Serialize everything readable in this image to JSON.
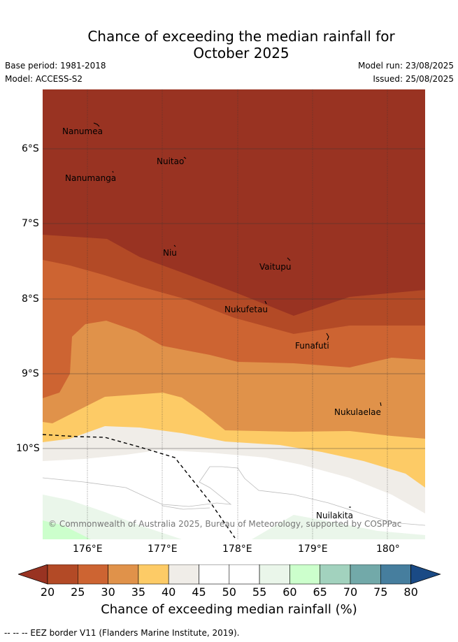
{
  "title_line1": "Chance of exceeding the median rainfall for",
  "title_line2": "October 2025",
  "meta": {
    "base_period": "Base period: 1981-2018",
    "model": "Model: ACCESS-S2",
    "model_run": "Model run: 23/08/2025",
    "issued": "Issued: 25/08/2025"
  },
  "map": {
    "lat_labels": [
      "6°S",
      "7°S",
      "8°S",
      "9°S",
      "10°S"
    ],
    "lon_labels": [
      "176°E",
      "177°E",
      "178°E",
      "179°E",
      "180°"
    ],
    "places": [
      "Nanumea",
      "Nuitao",
      "Nanumanga",
      "Niu",
      "Vaitupu",
      "Nukufetau",
      "Funafuti",
      "Nukulaelae",
      "Nuilakita"
    ],
    "copyright": "© Commonwealth of Australia 2025, Bureau of Meteorology, supported by COSPPac"
  },
  "colorbar": {
    "ticks": [
      "20",
      "25",
      "30",
      "35",
      "40",
      "45",
      "50",
      "55",
      "60",
      "65",
      "70",
      "75",
      "80"
    ],
    "colors": [
      "#b34a26",
      "#cd6432",
      "#e0924a",
      "#fdcb66",
      "#f0ede8",
      "#ffffff",
      "#ffffff",
      "#eaf6ea",
      "#ccffcc",
      "#a2d2be",
      "#72a9a9",
      "#467e9e"
    ],
    "under_color": "#993322",
    "over_color": "#1a4a85",
    "label": "Chance of exceeding median rainfall (%)"
  },
  "footnote": "--  --  -- EEZ border V11 (Flanders Marine Institute, 2019)."
}
